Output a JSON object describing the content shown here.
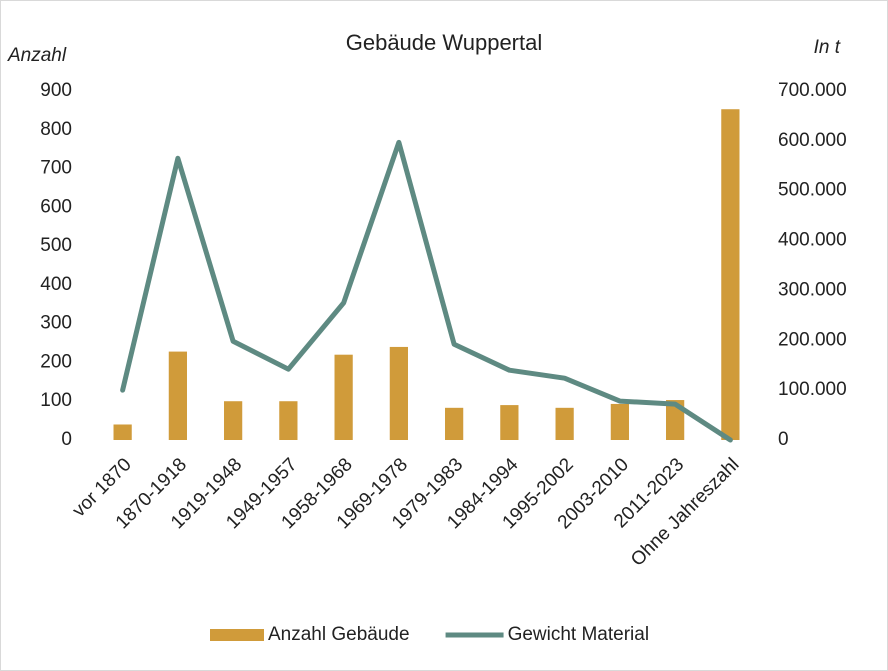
{
  "chart_data": {
    "type": "bar",
    "title": "Gebäude Wuppertal",
    "y_label": "Anzahl",
    "y2_label": "In t",
    "categories": [
      "vor 1870",
      "1870-1918",
      "1919-1948",
      "1949-1957",
      "1958-1968",
      "1969-1978",
      "1979-1983",
      "1984-1994",
      "1995-2002",
      "2003-2010",
      "2011-2023",
      "Ohne Jahreszahl"
    ],
    "series": [
      {
        "name": "Anzahl Gebäude",
        "type": "bar",
        "color": "#d09b3a",
        "values": [
          40,
          228,
          100,
          100,
          220,
          240,
          83,
          90,
          83,
          93,
          103,
          853
        ]
      },
      {
        "name": "Gewicht Material",
        "type": "line",
        "color": "#5e8a82",
        "axis": "y2",
        "values": [
          100000,
          565000,
          198000,
          142000,
          275000,
          597000,
          192000,
          140000,
          124000,
          78000,
          72000,
          0
        ]
      }
    ],
    "ylim": [
      0,
      900
    ],
    "yticks": [
      0,
      100,
      200,
      300,
      400,
      500,
      600,
      700,
      800,
      900
    ],
    "y2lim": [
      0,
      700000
    ],
    "y2ticks": [
      0,
      {
        "value": 100000,
        "label": "100.000"
      },
      {
        "value": 200000,
        "label": "200.000"
      },
      {
        "value": 300000,
        "label": "300.000"
      },
      {
        "value": 400000,
        "label": "400.000"
      },
      {
        "value": 500000,
        "label": "500.000"
      },
      {
        "value": 600000,
        "label": "600.000"
      },
      {
        "value": 700000,
        "label": "700.000"
      }
    ],
    "grid": false,
    "legend": "bottom"
  }
}
